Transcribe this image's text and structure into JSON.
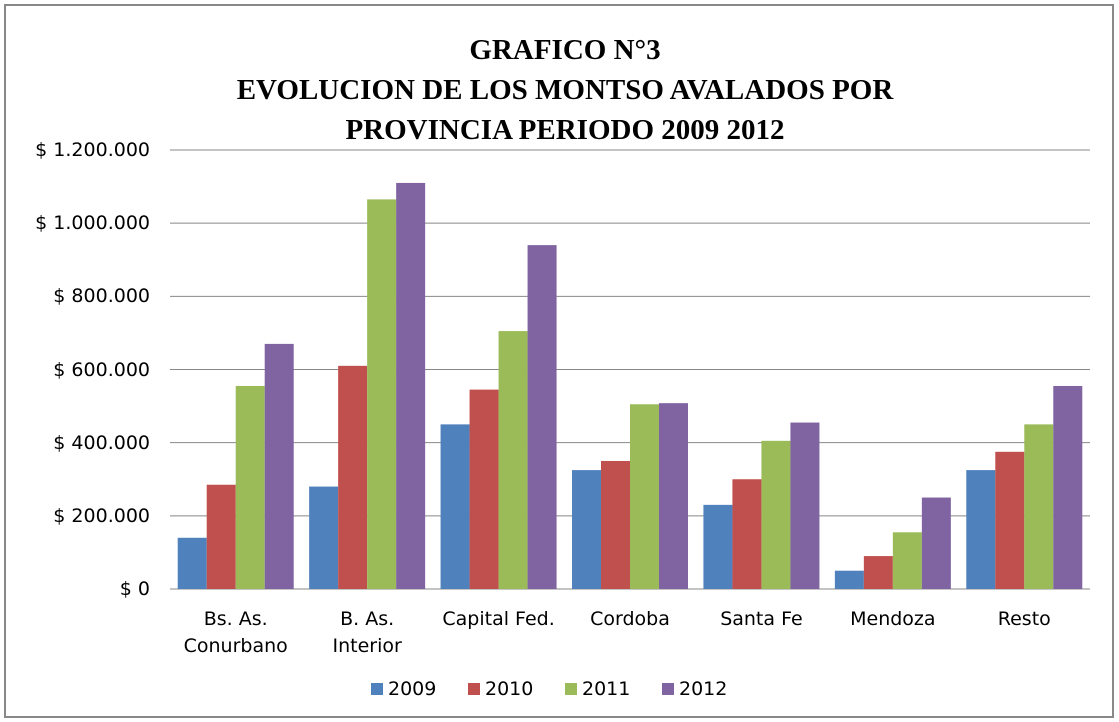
{
  "chart_data": {
    "type": "bar",
    "title": "GRAFICO N°3\nEVOLUCION DE LOS MONTSO AVALADOS POR\nPROVINCIA PERIODO 2009 2012",
    "categories": [
      "Bs. As.\nConurbano",
      "B. As.\nInterior",
      "Capital Fed.",
      "Cordoba",
      "Santa Fe",
      "Mendoza",
      "Resto"
    ],
    "series": [
      {
        "name": "2009",
        "color": "#4f81bd",
        "values": [
          140000,
          280000,
          450000,
          325000,
          230000,
          50000,
          325000
        ]
      },
      {
        "name": "2010",
        "color": "#c0504d",
        "values": [
          285000,
          610000,
          545000,
          350000,
          300000,
          90000,
          375000
        ]
      },
      {
        "name": "2011",
        "color": "#9bbb59",
        "values": [
          555000,
          1065000,
          705000,
          505000,
          405000,
          155000,
          450000
        ]
      },
      {
        "name": "2012",
        "color": "#8064a2",
        "values": [
          670000,
          1110000,
          940000,
          508000,
          455000,
          250000,
          555000
        ]
      }
    ],
    "ylim": [
      0,
      1200000
    ],
    "yticks": [
      {
        "value": 0,
        "label": "$ 0"
      },
      {
        "value": 200000,
        "label": "$ 200.000"
      },
      {
        "value": 400000,
        "label": "$ 400.000"
      },
      {
        "value": 600000,
        "label": "$ 600.000"
      },
      {
        "value": 800000,
        "label": "$ 800.000"
      },
      {
        "value": 1000000,
        "label": "$ 1.000.000"
      },
      {
        "value": 1200000,
        "label": "$ 1.200.000"
      }
    ],
    "grid": true,
    "legend": "bottom"
  }
}
